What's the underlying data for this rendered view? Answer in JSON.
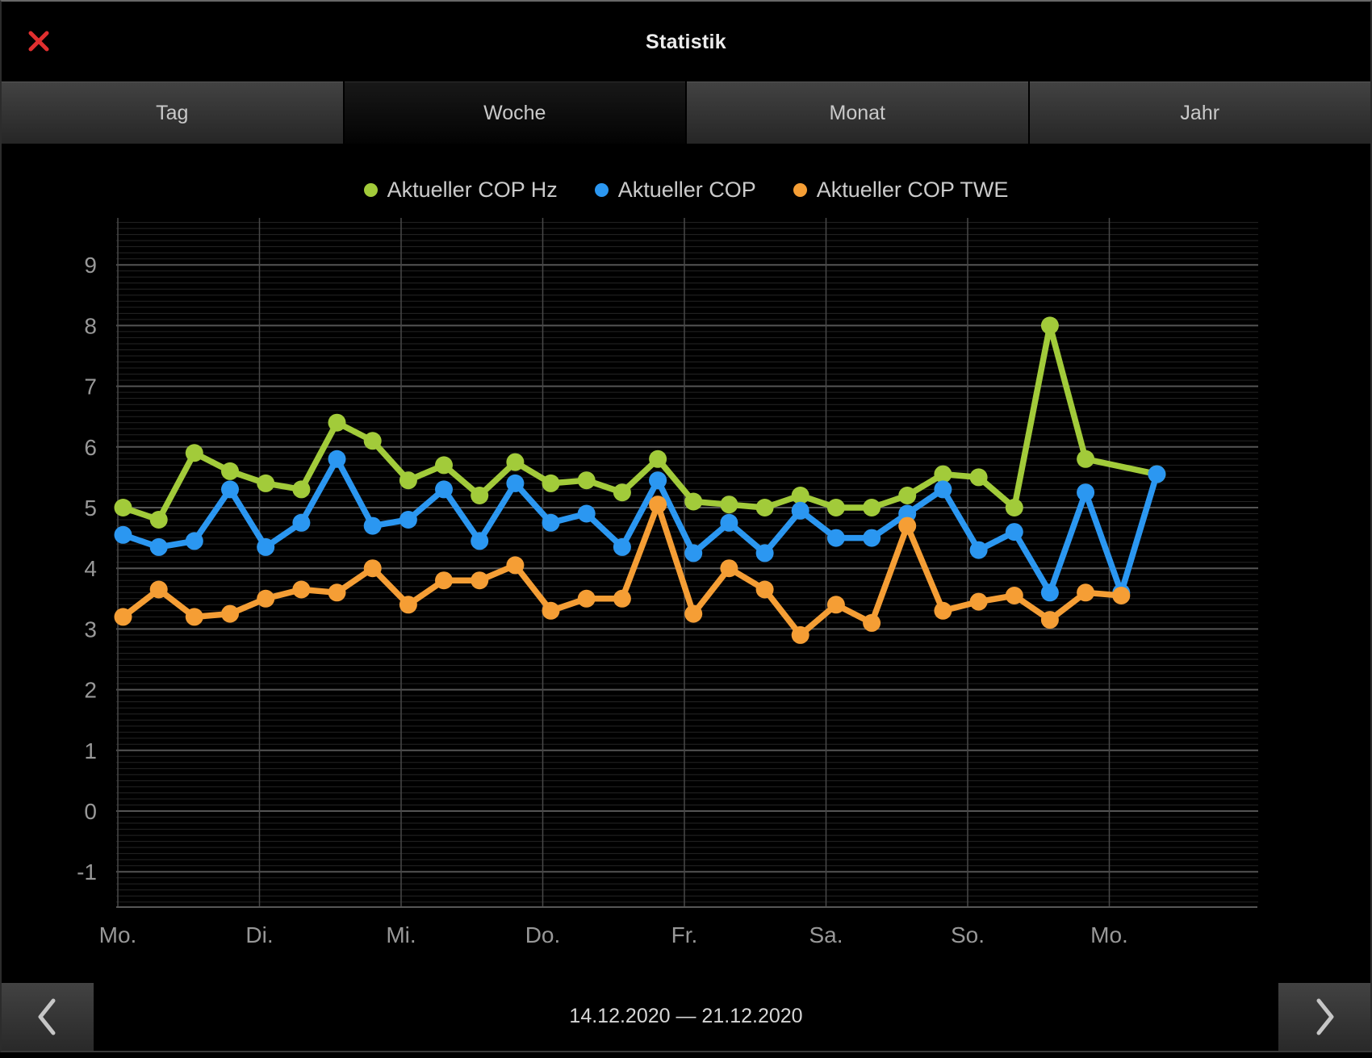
{
  "window": {
    "title": "Statistik"
  },
  "tabs": [
    {
      "label": "Tag",
      "selected": false
    },
    {
      "label": "Woche",
      "selected": true
    },
    {
      "label": "Monat",
      "selected": false
    },
    {
      "label": "Jahr",
      "selected": false
    }
  ],
  "legend": [
    {
      "label": "Aktueller COP Hz",
      "color": "#a2cb3a"
    },
    {
      "label": "Aktueller COP",
      "color": "#2b97f1"
    },
    {
      "label": "Aktueller COP TWE",
      "color": "#f59e35"
    }
  ],
  "chart_data": {
    "type": "line",
    "title": "",
    "x_labels": [
      "Mo.",
      "Di.",
      "Mi.",
      "Do.",
      "Fr.",
      "Sa.",
      "So.",
      "Mo."
    ],
    "points_per_day": 4,
    "y_ticks": [
      9,
      8,
      7,
      6,
      5,
      4,
      3,
      2,
      1,
      0,
      -1
    ],
    "ylim": [
      -1.6,
      9.8
    ],
    "grid": {
      "minor_step": 0.1,
      "major_step": 1,
      "minor_color": "#242424",
      "major_color": "#545454",
      "day_color": "#484848"
    },
    "series": [
      {
        "name": "Aktueller COP Hz",
        "color": "#a2cb3a",
        "values": [
          5.0,
          4.8,
          5.9,
          5.6,
          5.4,
          5.3,
          6.4,
          6.1,
          5.45,
          5.7,
          5.2,
          5.75,
          5.4,
          5.45,
          5.25,
          5.8,
          5.1,
          5.05,
          5.0,
          5.2,
          5.0,
          5.0,
          5.2,
          5.55,
          5.5,
          5.0,
          8.0,
          5.8,
          null,
          5.55
        ]
      },
      {
        "name": "Aktueller COP",
        "color": "#2b97f1",
        "values": [
          4.55,
          4.35,
          4.45,
          5.3,
          4.35,
          4.75,
          5.8,
          4.7,
          4.8,
          5.3,
          4.45,
          5.4,
          4.75,
          4.9,
          4.35,
          5.45,
          4.25,
          4.75,
          4.25,
          4.95,
          4.5,
          4.5,
          4.9,
          5.3,
          4.3,
          4.6,
          3.6,
          5.25,
          3.6,
          5.55
        ]
      },
      {
        "name": "Aktueller COP TWE",
        "color": "#f59e35",
        "values": [
          3.2,
          3.65,
          3.2,
          3.25,
          3.5,
          3.65,
          3.6,
          4.0,
          3.4,
          3.8,
          3.8,
          4.05,
          3.3,
          3.5,
          3.5,
          5.05,
          3.25,
          4.0,
          3.65,
          2.9,
          3.4,
          3.1,
          4.7,
          3.3,
          3.45,
          3.55,
          3.15,
          3.6,
          3.55,
          null
        ]
      }
    ]
  },
  "footer": {
    "date_range": "14.12.2020 — 21.12.2020"
  }
}
